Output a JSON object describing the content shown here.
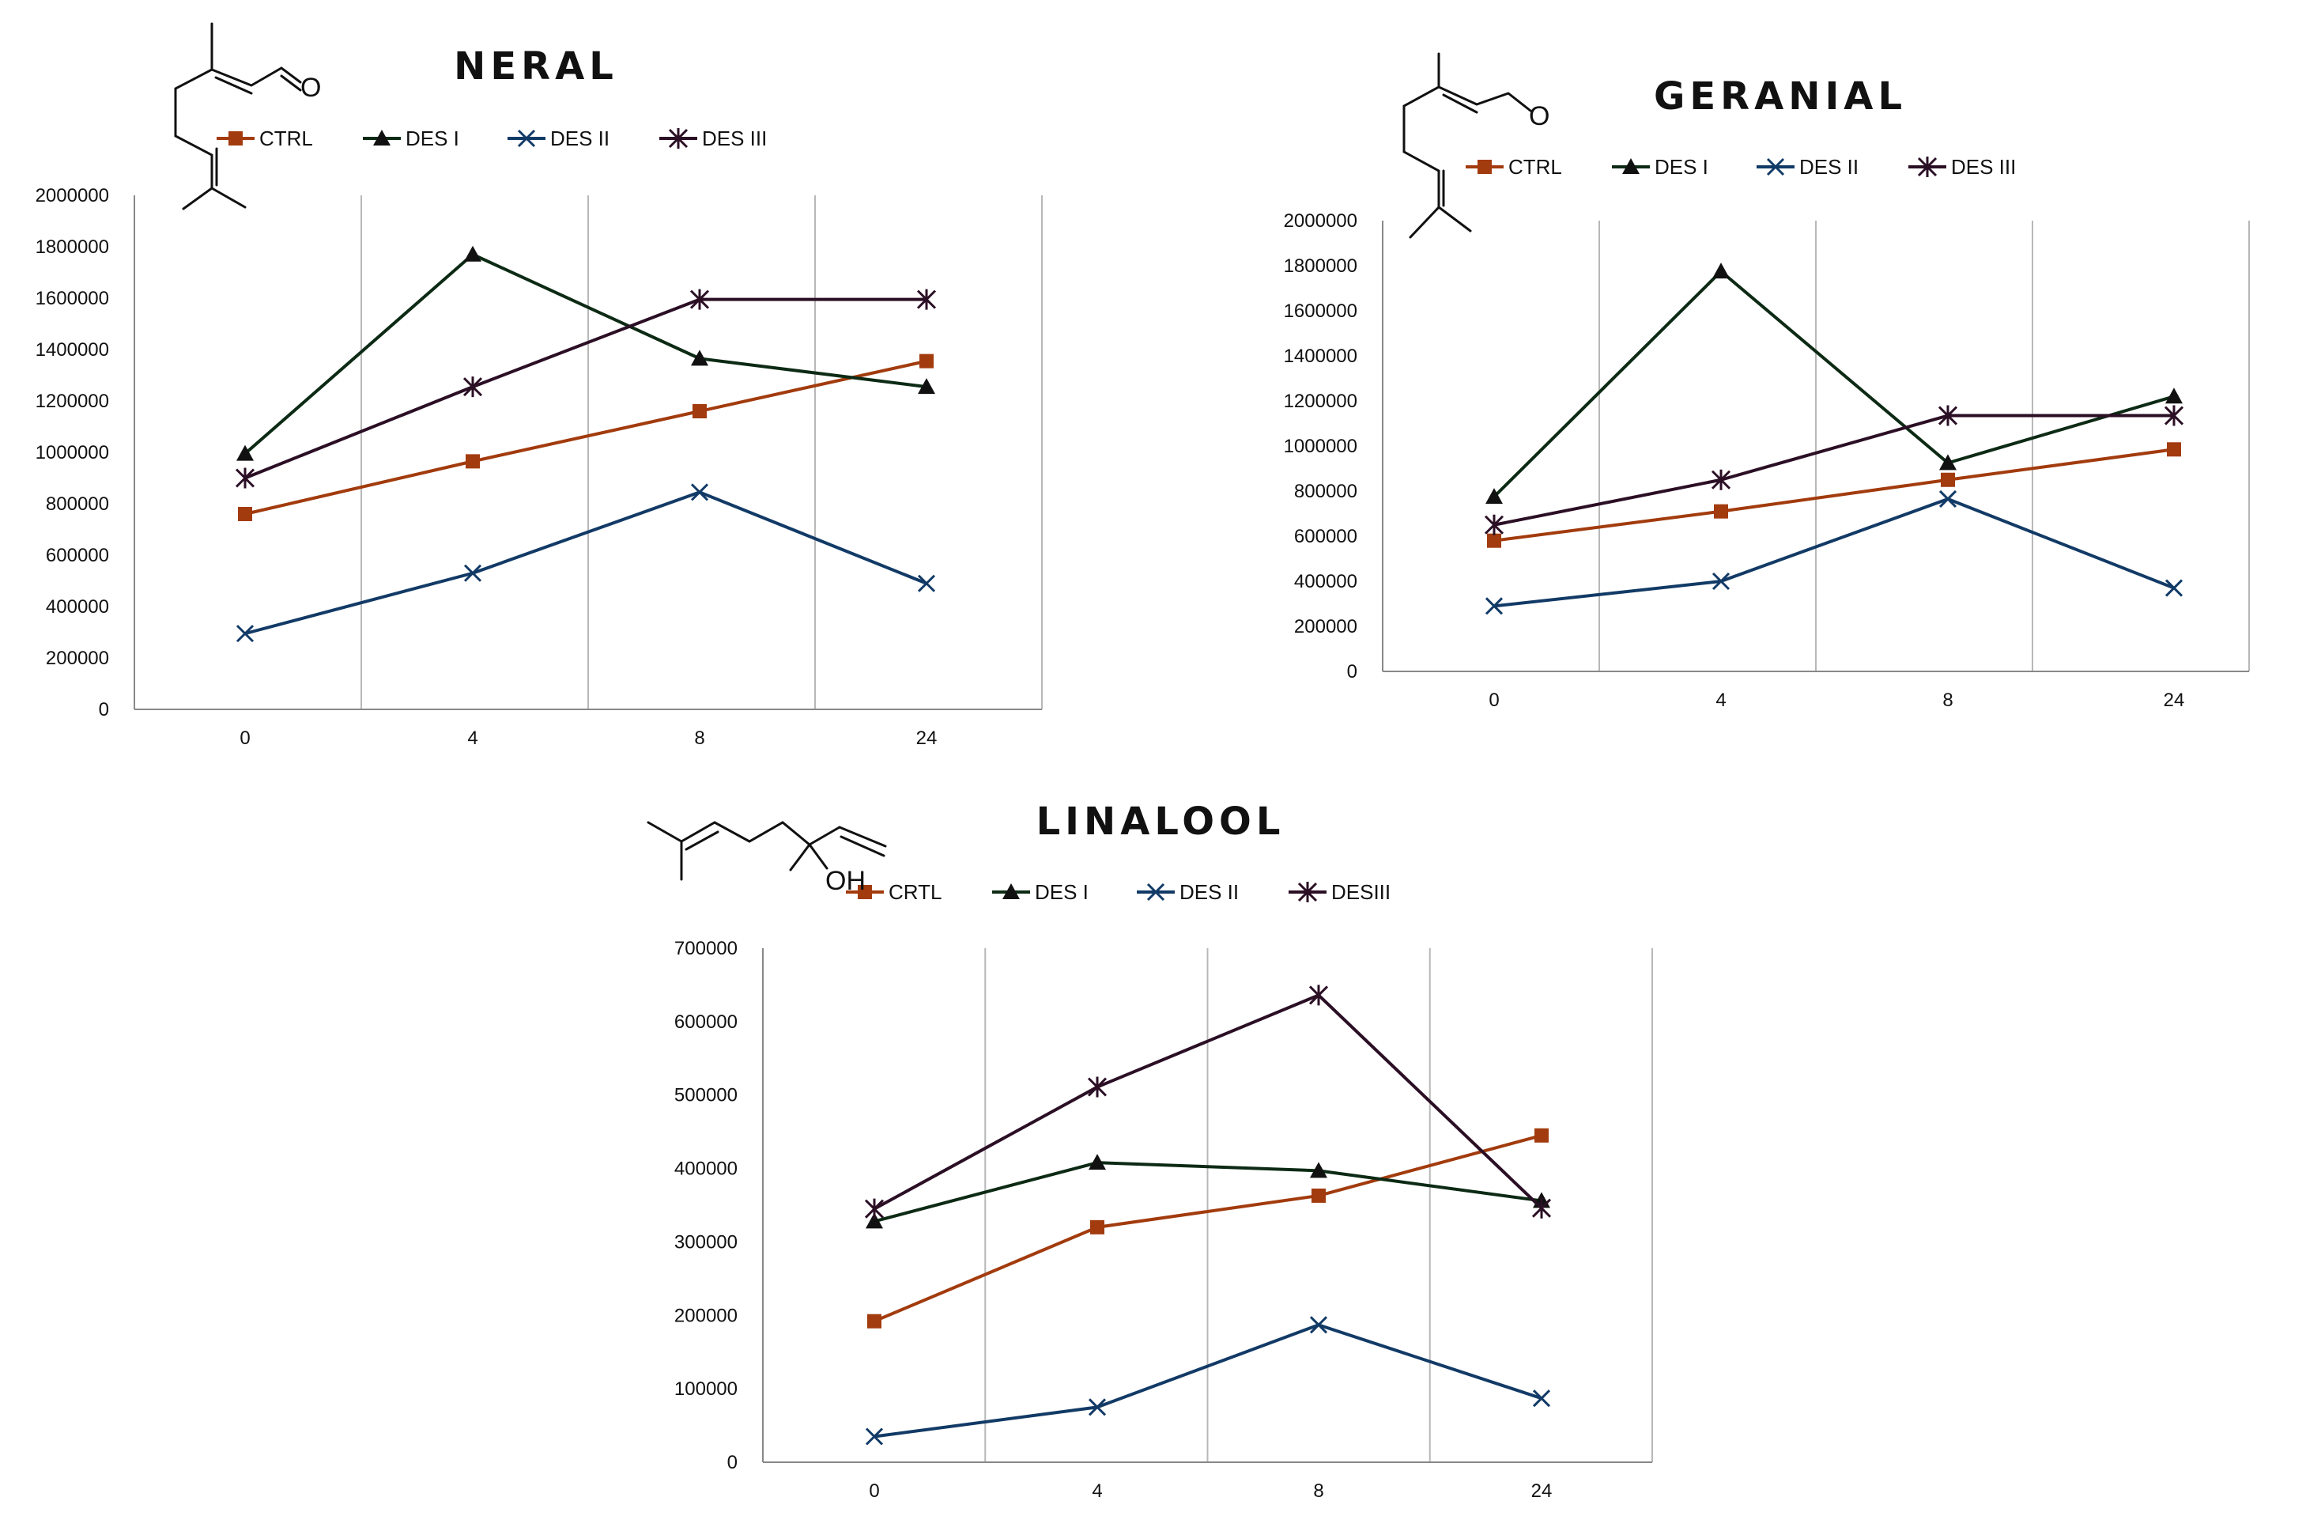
{
  "colors": {
    "CTRL": "#A23B0D",
    "DESI": "#0C2A14",
    "DESII": "#123A66",
    "DESIII": "#2B0F25",
    "grid": "#b8b8b8",
    "axis": "#888888"
  },
  "chart_data": [
    {
      "id": "neral",
      "type": "line",
      "title": "NERAL",
      "categories": [
        "0",
        "4",
        "8",
        "24"
      ],
      "ylim": [
        0,
        2000000
      ],
      "yticks": [
        "0",
        "200000",
        "400000",
        "600000",
        "800000",
        "1000000",
        "1200000",
        "1400000",
        "1600000",
        "1800000",
        "2000000"
      ],
      "legend": "top",
      "series": [
        {
          "name": "CTRL",
          "key": "CTRL",
          "marker": "square",
          "values": [
            760000,
            965000,
            1160000,
            1355000
          ]
        },
        {
          "name": "DES I",
          "key": "DESI",
          "marker": "triangle",
          "values": [
            995000,
            1770000,
            1365000,
            1255000
          ]
        },
        {
          "name": "DES II",
          "key": "DESII",
          "marker": "x",
          "values": [
            295000,
            530000,
            845000,
            490000
          ]
        },
        {
          "name": "DES III",
          "key": "DESIII",
          "marker": "star",
          "values": [
            900000,
            1255000,
            1595000,
            1595000
          ]
        }
      ],
      "structure_labels": [
        "O"
      ]
    },
    {
      "id": "geranial",
      "type": "line",
      "title": "GERANIAL",
      "categories": [
        "0",
        "4",
        "8",
        "24"
      ],
      "ylim": [
        0,
        2000000
      ],
      "yticks": [
        "0",
        "200000",
        "400000",
        "600000",
        "800000",
        "1000000",
        "1200000",
        "1400000",
        "1600000",
        "1800000",
        "2000000"
      ],
      "legend": "top",
      "series": [
        {
          "name": "CTRL",
          "key": "CTRL",
          "marker": "square",
          "values": [
            580000,
            710000,
            850000,
            985000
          ]
        },
        {
          "name": "DES I",
          "key": "DESI",
          "marker": "triangle",
          "values": [
            775000,
            1775000,
            925000,
            1220000
          ]
        },
        {
          "name": "DES II",
          "key": "DESII",
          "marker": "x",
          "values": [
            290000,
            400000,
            765000,
            370000
          ]
        },
        {
          "name": "DES III",
          "key": "DESIII",
          "marker": "star",
          "values": [
            650000,
            850000,
            1135000,
            1135000
          ]
        }
      ],
      "structure_labels": [
        "O"
      ]
    },
    {
      "id": "linalool",
      "type": "line",
      "title": "LINALOOL",
      "categories": [
        "0",
        "4",
        "8",
        "24"
      ],
      "ylim": [
        0,
        700000
      ],
      "yticks": [
        "0",
        "100000",
        "200000",
        "300000",
        "400000",
        "500000",
        "600000",
        "700000"
      ],
      "legend": "top",
      "series": [
        {
          "name": "CRTL",
          "key": "CTRL",
          "marker": "square",
          "values": [
            192000,
            320000,
            363000,
            445000
          ]
        },
        {
          "name": "DES I",
          "key": "DESI",
          "marker": "triangle",
          "values": [
            328000,
            408000,
            397000,
            356000
          ]
        },
        {
          "name": "DES II",
          "key": "DESII",
          "marker": "x",
          "values": [
            35000,
            75000,
            187000,
            87000
          ]
        },
        {
          "name": "DESIII",
          "key": "DESIII",
          "marker": "star",
          "values": [
            345000,
            511000,
            636000,
            346000
          ]
        }
      ],
      "structure_labels": [
        "OH"
      ]
    }
  ]
}
